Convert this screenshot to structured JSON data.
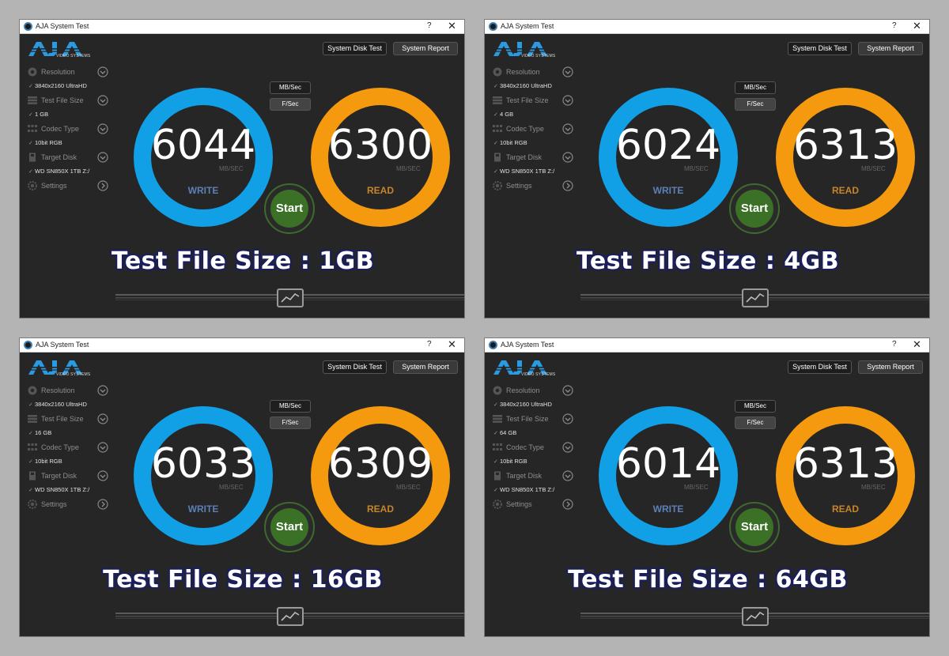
{
  "windows": [
    {
      "title": "AJA System Test",
      "help": "?",
      "close": "✕",
      "logo_tag": "VIDEO SYSTEMS",
      "system_disk_test": "System Disk Test",
      "system_report": "System Report",
      "sidebar": [
        {
          "label": "Resolution",
          "value": "3840x2160 UltraHD",
          "icon": "resolution-icon"
        },
        {
          "label": "Test File Size",
          "value": "1 GB",
          "icon": "file-size-icon"
        },
        {
          "label": "Codec Type",
          "value": "10bit RGB",
          "icon": "codec-icon"
        },
        {
          "label": "Target Disk",
          "value": "WD SN850X 1TB Z:/",
          "icon": "disk-icon"
        },
        {
          "label": "Settings",
          "icon": "gear-icon"
        }
      ],
      "unit_mb": "MB/Sec",
      "unit_fs": "F/Sec",
      "write_value": "6044",
      "read_value": "6300",
      "rate_unit": "MB/SEC",
      "write_label": "WRITE",
      "read_label": "READ",
      "start": "Start",
      "caption": "Test File Size : 1GB"
    },
    {
      "title": "AJA System Test",
      "help": "?",
      "close": "✕",
      "logo_tag": "VIDEO SYSTEMS",
      "system_disk_test": "System Disk Test",
      "system_report": "System Report",
      "sidebar": [
        {
          "label": "Resolution",
          "value": "3840x2160 UltraHD",
          "icon": "resolution-icon"
        },
        {
          "label": "Test File Size",
          "value": "4 GB",
          "icon": "file-size-icon"
        },
        {
          "label": "Codec Type",
          "value": "10bit RGB",
          "icon": "codec-icon"
        },
        {
          "label": "Target Disk",
          "value": "WD SN850X 1TB Z:/",
          "icon": "disk-icon"
        },
        {
          "label": "Settings",
          "icon": "gear-icon"
        }
      ],
      "unit_mb": "MB/Sec",
      "unit_fs": "F/Sec",
      "write_value": "6024",
      "read_value": "6313",
      "rate_unit": "MB/SEC",
      "write_label": "WRITE",
      "read_label": "READ",
      "start": "Start",
      "caption": "Test File Size : 4GB"
    },
    {
      "title": "AJA System Test",
      "help": "?",
      "close": "✕",
      "logo_tag": "VIDEO SYSTEMS",
      "system_disk_test": "System Disk Test",
      "system_report": "System Report",
      "sidebar": [
        {
          "label": "Resolution",
          "value": "3840x2160 UltraHD",
          "icon": "resolution-icon"
        },
        {
          "label": "Test File Size",
          "value": "16 GB",
          "icon": "file-size-icon"
        },
        {
          "label": "Codec Type",
          "value": "10bit RGB",
          "icon": "codec-icon"
        },
        {
          "label": "Target Disk",
          "value": "WD SN850X 1TB Z:/",
          "icon": "disk-icon"
        },
        {
          "label": "Settings",
          "icon": "gear-icon"
        }
      ],
      "unit_mb": "MB/Sec",
      "unit_fs": "F/Sec",
      "write_value": "6033",
      "read_value": "6309",
      "rate_unit": "MB/SEC",
      "write_label": "WRITE",
      "read_label": "READ",
      "start": "Start",
      "caption": "Test File Size : 16GB"
    },
    {
      "title": "AJA System Test",
      "help": "?",
      "close": "✕",
      "logo_tag": "VIDEO SYSTEMS",
      "system_disk_test": "System Disk Test",
      "system_report": "System Report",
      "sidebar": [
        {
          "label": "Resolution",
          "value": "3840x2160 UltraHD",
          "icon": "resolution-icon"
        },
        {
          "label": "Test File Size",
          "value": "64 GB",
          "icon": "file-size-icon"
        },
        {
          "label": "Codec Type",
          "value": "10bit RGB",
          "icon": "codec-icon"
        },
        {
          "label": "Target Disk",
          "value": "WD SN850X 1TB Z:/",
          "icon": "disk-icon"
        },
        {
          "label": "Settings",
          "icon": "gear-icon"
        }
      ],
      "unit_mb": "MB/Sec",
      "unit_fs": "F/Sec",
      "write_value": "6014",
      "read_value": "6313",
      "rate_unit": "MB/SEC",
      "write_label": "WRITE",
      "read_label": "READ",
      "start": "Start",
      "caption": "Test File Size : 64GB"
    }
  ],
  "colors": {
    "write_ring": "#119fe5",
    "read_ring": "#f59a0f",
    "start_button": "#3b7126",
    "caption_outline": "#1a1e5a"
  }
}
